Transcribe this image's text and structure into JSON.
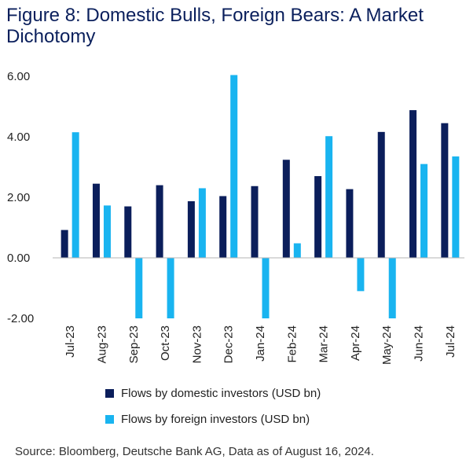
{
  "title": "Figure 8: Domestic Bulls, Foreign Bears: A Market Dichotomy",
  "source": "Source: Bloomberg, Deutsche Bank AG, Data as of August 16, 2024.",
  "colors": {
    "domestic": "#0b1e5b",
    "foreign": "#19b4f0",
    "axis": "#b5b5b5"
  },
  "chart_data": {
    "type": "bar",
    "categories": [
      "Jul-23",
      "Aug-23",
      "Sep-23",
      "Oct-23",
      "Nov-23",
      "Dec-23",
      "Jan-24",
      "Feb-24",
      "Mar-24",
      "Apr-24",
      "May-24",
      "Jun-24",
      "Jul-24"
    ],
    "series": [
      {
        "name": "Flows by domestic investors (USD bn)",
        "values": [
          0.92,
          2.45,
          1.7,
          2.4,
          1.87,
          2.04,
          2.37,
          3.24,
          2.7,
          2.27,
          4.16,
          4.88,
          4.45
        ]
      },
      {
        "name": "Flows by foreign investors (USD bn)",
        "values": [
          4.15,
          1.73,
          -2.0,
          -2.0,
          2.3,
          6.04,
          -2.0,
          0.48,
          4.02,
          -1.1,
          -2.0,
          3.1,
          3.35
        ]
      }
    ],
    "yticks": [
      "6.00",
      "4.00",
      "2.00",
      "0.00",
      "-2.00"
    ],
    "ylim": [
      -2,
      6
    ],
    "xlabel": "",
    "ylabel": "",
    "grid": false,
    "legend_position": "bottom"
  }
}
